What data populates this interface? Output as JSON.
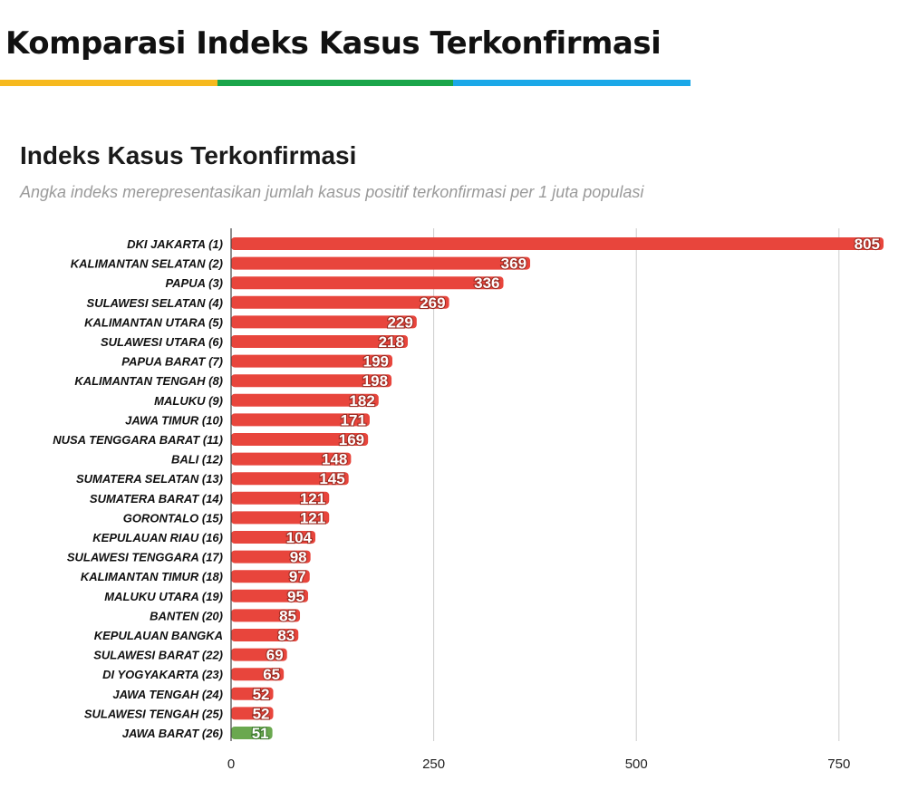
{
  "header": {
    "title": "Komparasi Indeks Kasus Terkonfirmasi",
    "rule_colors": [
      "#f6b91e",
      "#1aa54a",
      "#1ba8e8"
    ]
  },
  "chart_data": {
    "type": "bar",
    "orientation": "horizontal",
    "title": "Indeks Kasus Terkonfirmasi",
    "subtitle": "Angka indeks merepresentasikan jumlah kasus positif terkonfirmasi per 1 juta populasi",
    "categories": [
      "DKI JAKARTA (1)",
      "KALIMANTAN SELATAN (2)",
      "PAPUA (3)",
      "SULAWESI SELATAN (4)",
      "KALIMANTAN UTARA (5)",
      "SULAWESI UTARA (6)",
      "PAPUA BARAT (7)",
      "KALIMANTAN TENGAH (8)",
      "MALUKU (9)",
      "JAWA TIMUR (10)",
      "NUSA TENGGARA BARAT (11)",
      "BALI (12)",
      "SUMATERA SELATAN (13)",
      "SUMATERA BARAT (14)",
      "GORONTALO (15)",
      "KEPULAUAN RIAU (16)",
      "SULAWESI TENGGARA (17)",
      "KALIMANTAN TIMUR (18)",
      "MALUKU UTARA (19)",
      "BANTEN (20)",
      "KEPULAUAN BANGKA",
      "SULAWESI BARAT (22)",
      "DI YOGYAKARTA (23)",
      "JAWA TENGAH (24)",
      "SULAWESI TENGAH (25)",
      "JAWA BARAT (26)"
    ],
    "values": [
      805,
      369,
      336,
      269,
      229,
      218,
      199,
      198,
      182,
      171,
      169,
      148,
      145,
      121,
      121,
      104,
      98,
      97,
      95,
      85,
      83,
      69,
      65,
      52,
      52,
      51
    ],
    "value_labels": [
      "805",
      "369",
      "336",
      "269",
      "229",
      "218",
      "199",
      "198",
      "182",
      "171",
      "169",
      "148",
      "145",
      "121",
      "121",
      "104",
      "98",
      "97",
      "95",
      "85",
      "83",
      "69",
      "65",
      "52",
      "52",
      "51"
    ],
    "highlight_index": 25,
    "colors": {
      "bar": "#e8453c",
      "highlight": "#6aa84f",
      "grid": "#cccccc"
    },
    "xlim": [
      0,
      805
    ],
    "xticks": [
      0,
      250,
      500,
      750
    ],
    "xtick_labels": [
      "0",
      "250",
      "500",
      "750"
    ],
    "grid": true,
    "legend": "none"
  }
}
